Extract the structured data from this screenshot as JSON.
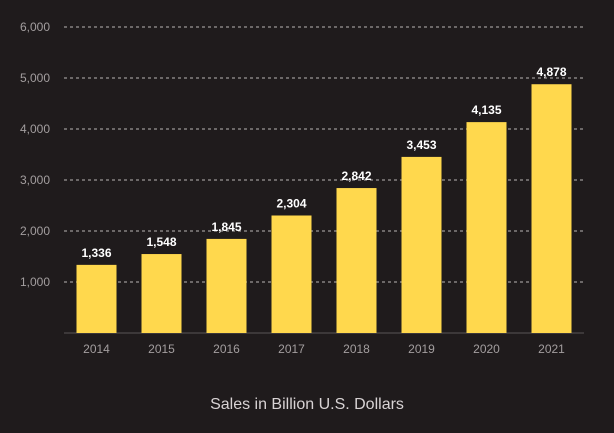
{
  "chart_data": {
    "type": "bar",
    "categories": [
      "2014",
      "2015",
      "2016",
      "2017",
      "2018",
      "2019",
      "2020",
      "2021"
    ],
    "values": [
      1336,
      1548,
      1845,
      2304,
      2842,
      3453,
      4135,
      4878
    ],
    "value_labels": [
      "1,336",
      "1,548",
      "1,845",
      "2,304",
      "2,842",
      "3,453",
      "4,135",
      "4,878"
    ],
    "yticks": [
      {
        "value": 1000,
        "label": "1,000"
      },
      {
        "value": 2000,
        "label": "2,000"
      },
      {
        "value": 3000,
        "label": "3,000"
      },
      {
        "value": 4000,
        "label": "4,000"
      },
      {
        "value": 5000,
        "label": "5,000"
      },
      {
        "value": 6000,
        "label": "6,000"
      }
    ],
    "ylim": [
      0,
      6000
    ],
    "title": "",
    "xlabel": "Sales in Billion U.S. Dollars",
    "ylabel": "",
    "grid": true,
    "legend": "none"
  },
  "colors": {
    "background": "#1f1b1c",
    "bar": "#ffd84d",
    "grid": "#b9b4b5",
    "axis_text": "#a39e9f",
    "value_label": "#ffffff"
  }
}
